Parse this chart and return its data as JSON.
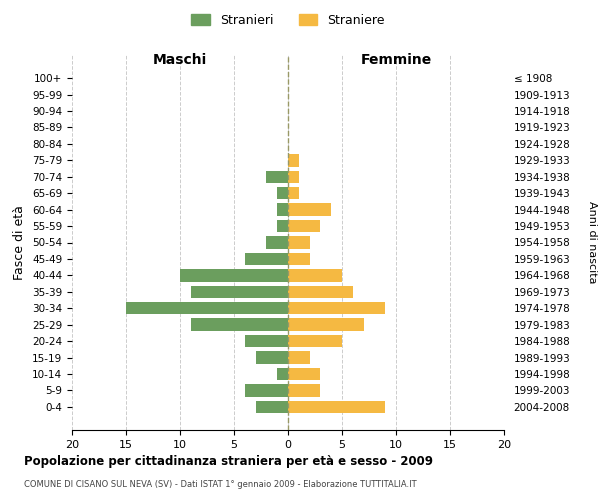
{
  "age_groups": [
    "100+",
    "95-99",
    "90-94",
    "85-89",
    "80-84",
    "75-79",
    "70-74",
    "65-69",
    "60-64",
    "55-59",
    "50-54",
    "45-49",
    "40-44",
    "35-39",
    "30-34",
    "25-29",
    "20-24",
    "15-19",
    "10-14",
    "5-9",
    "0-4"
  ],
  "birth_years": [
    "≤ 1908",
    "1909-1913",
    "1914-1918",
    "1919-1923",
    "1924-1928",
    "1929-1933",
    "1934-1938",
    "1939-1943",
    "1944-1948",
    "1949-1953",
    "1954-1958",
    "1959-1963",
    "1964-1968",
    "1969-1973",
    "1974-1978",
    "1979-1983",
    "1984-1988",
    "1989-1993",
    "1994-1998",
    "1999-2003",
    "2004-2008"
  ],
  "maschi": [
    0,
    0,
    0,
    0,
    0,
    0,
    2,
    1,
    1,
    1,
    2,
    4,
    10,
    9,
    15,
    9,
    4,
    3,
    1,
    4,
    3
  ],
  "femmine": [
    0,
    0,
    0,
    0,
    0,
    1,
    1,
    1,
    4,
    3,
    2,
    2,
    5,
    6,
    9,
    7,
    5,
    2,
    3,
    3,
    9
  ],
  "color_maschi": "#6b9e5e",
  "color_femmine": "#f5b942",
  "background_color": "#ffffff",
  "grid_color": "#cccccc",
  "center_line_color": "#999966",
  "xlim": 20,
  "title": "Popolazione per cittadinanza straniera per età e sesso - 2009",
  "subtitle": "COMUNE DI CISANO SUL NEVA (SV) - Dati ISTAT 1° gennaio 2009 - Elaborazione TUTTITALIA.IT",
  "ylabel_left": "Fasce di età",
  "ylabel_right": "Anni di nascita",
  "label_maschi": "Maschi",
  "label_femmine": "Femmine",
  "legend_stranieri": "Stranieri",
  "legend_straniere": "Straniere"
}
